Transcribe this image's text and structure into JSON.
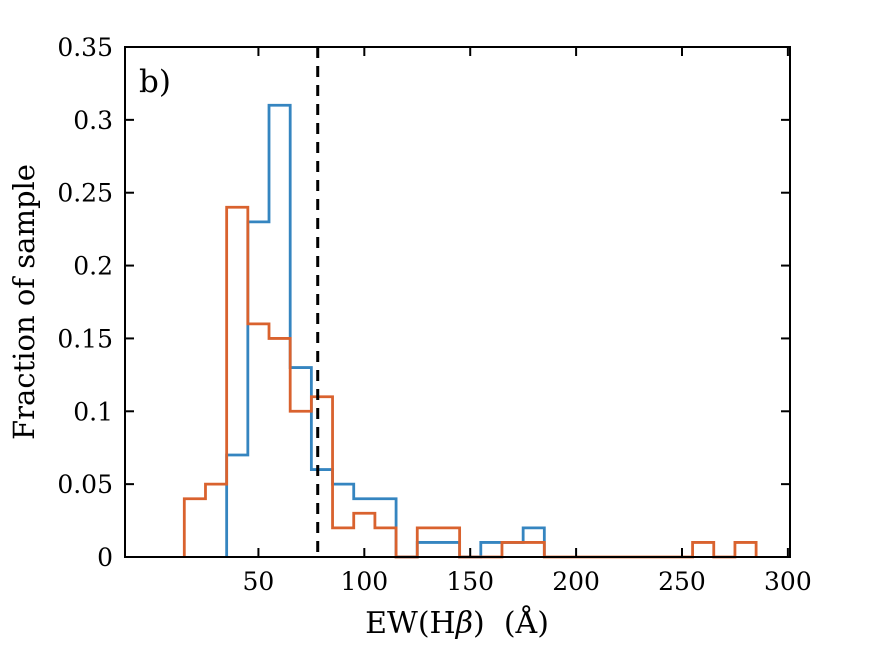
{
  "chart_data": {
    "type": "histogram-step",
    "panel_label": "b)",
    "xlabel": {
      "text": "EW(Hβ)  (Å)",
      "prefix": "EW(H",
      "beta": "β",
      "suffix": ")  (Å)"
    },
    "ylabel": "Fraction of sample",
    "xlim": [
      -13,
      301
    ],
    "ylim": [
      0,
      0.35
    ],
    "x_ticks": [
      50,
      100,
      150,
      200,
      250,
      300
    ],
    "x_tick_labels": [
      "50",
      "100",
      "150",
      "200",
      "250",
      "300"
    ],
    "y_ticks": [
      0,
      0.05,
      0.1,
      0.15,
      0.2,
      0.25,
      0.3,
      0.35
    ],
    "y_tick_labels": [
      "0",
      "0.05",
      "0.1",
      "0.15",
      "0.2",
      "0.25",
      "0.3",
      "0.35"
    ],
    "grid": false,
    "legend": null,
    "bin_width": 10,
    "series": [
      {
        "name": "blue-histogram",
        "color": "#3585c0",
        "bin_start": 35,
        "values": [
          0.07,
          0.23,
          0.31,
          0.13,
          0.06,
          0.05,
          0.04,
          0.04,
          0,
          0.01,
          0.01,
          0,
          0.01,
          0.01,
          0.02
        ]
      },
      {
        "name": "orange-histogram",
        "color": "#d9622e",
        "bin_start": 15,
        "values": [
          0.04,
          0.05,
          0.24,
          0.16,
          0.15,
          0.1,
          0.11,
          0.02,
          0.03,
          0.02,
          0,
          0.02,
          0.02,
          0,
          0,
          0.01,
          0.01,
          0,
          0,
          0,
          0,
          0,
          0,
          0,
          0.01,
          0,
          0.01
        ]
      }
    ],
    "vline": {
      "x": 78,
      "color": "#000000",
      "style": "dashed",
      "width": 3
    },
    "axis_color": "#000000"
  }
}
